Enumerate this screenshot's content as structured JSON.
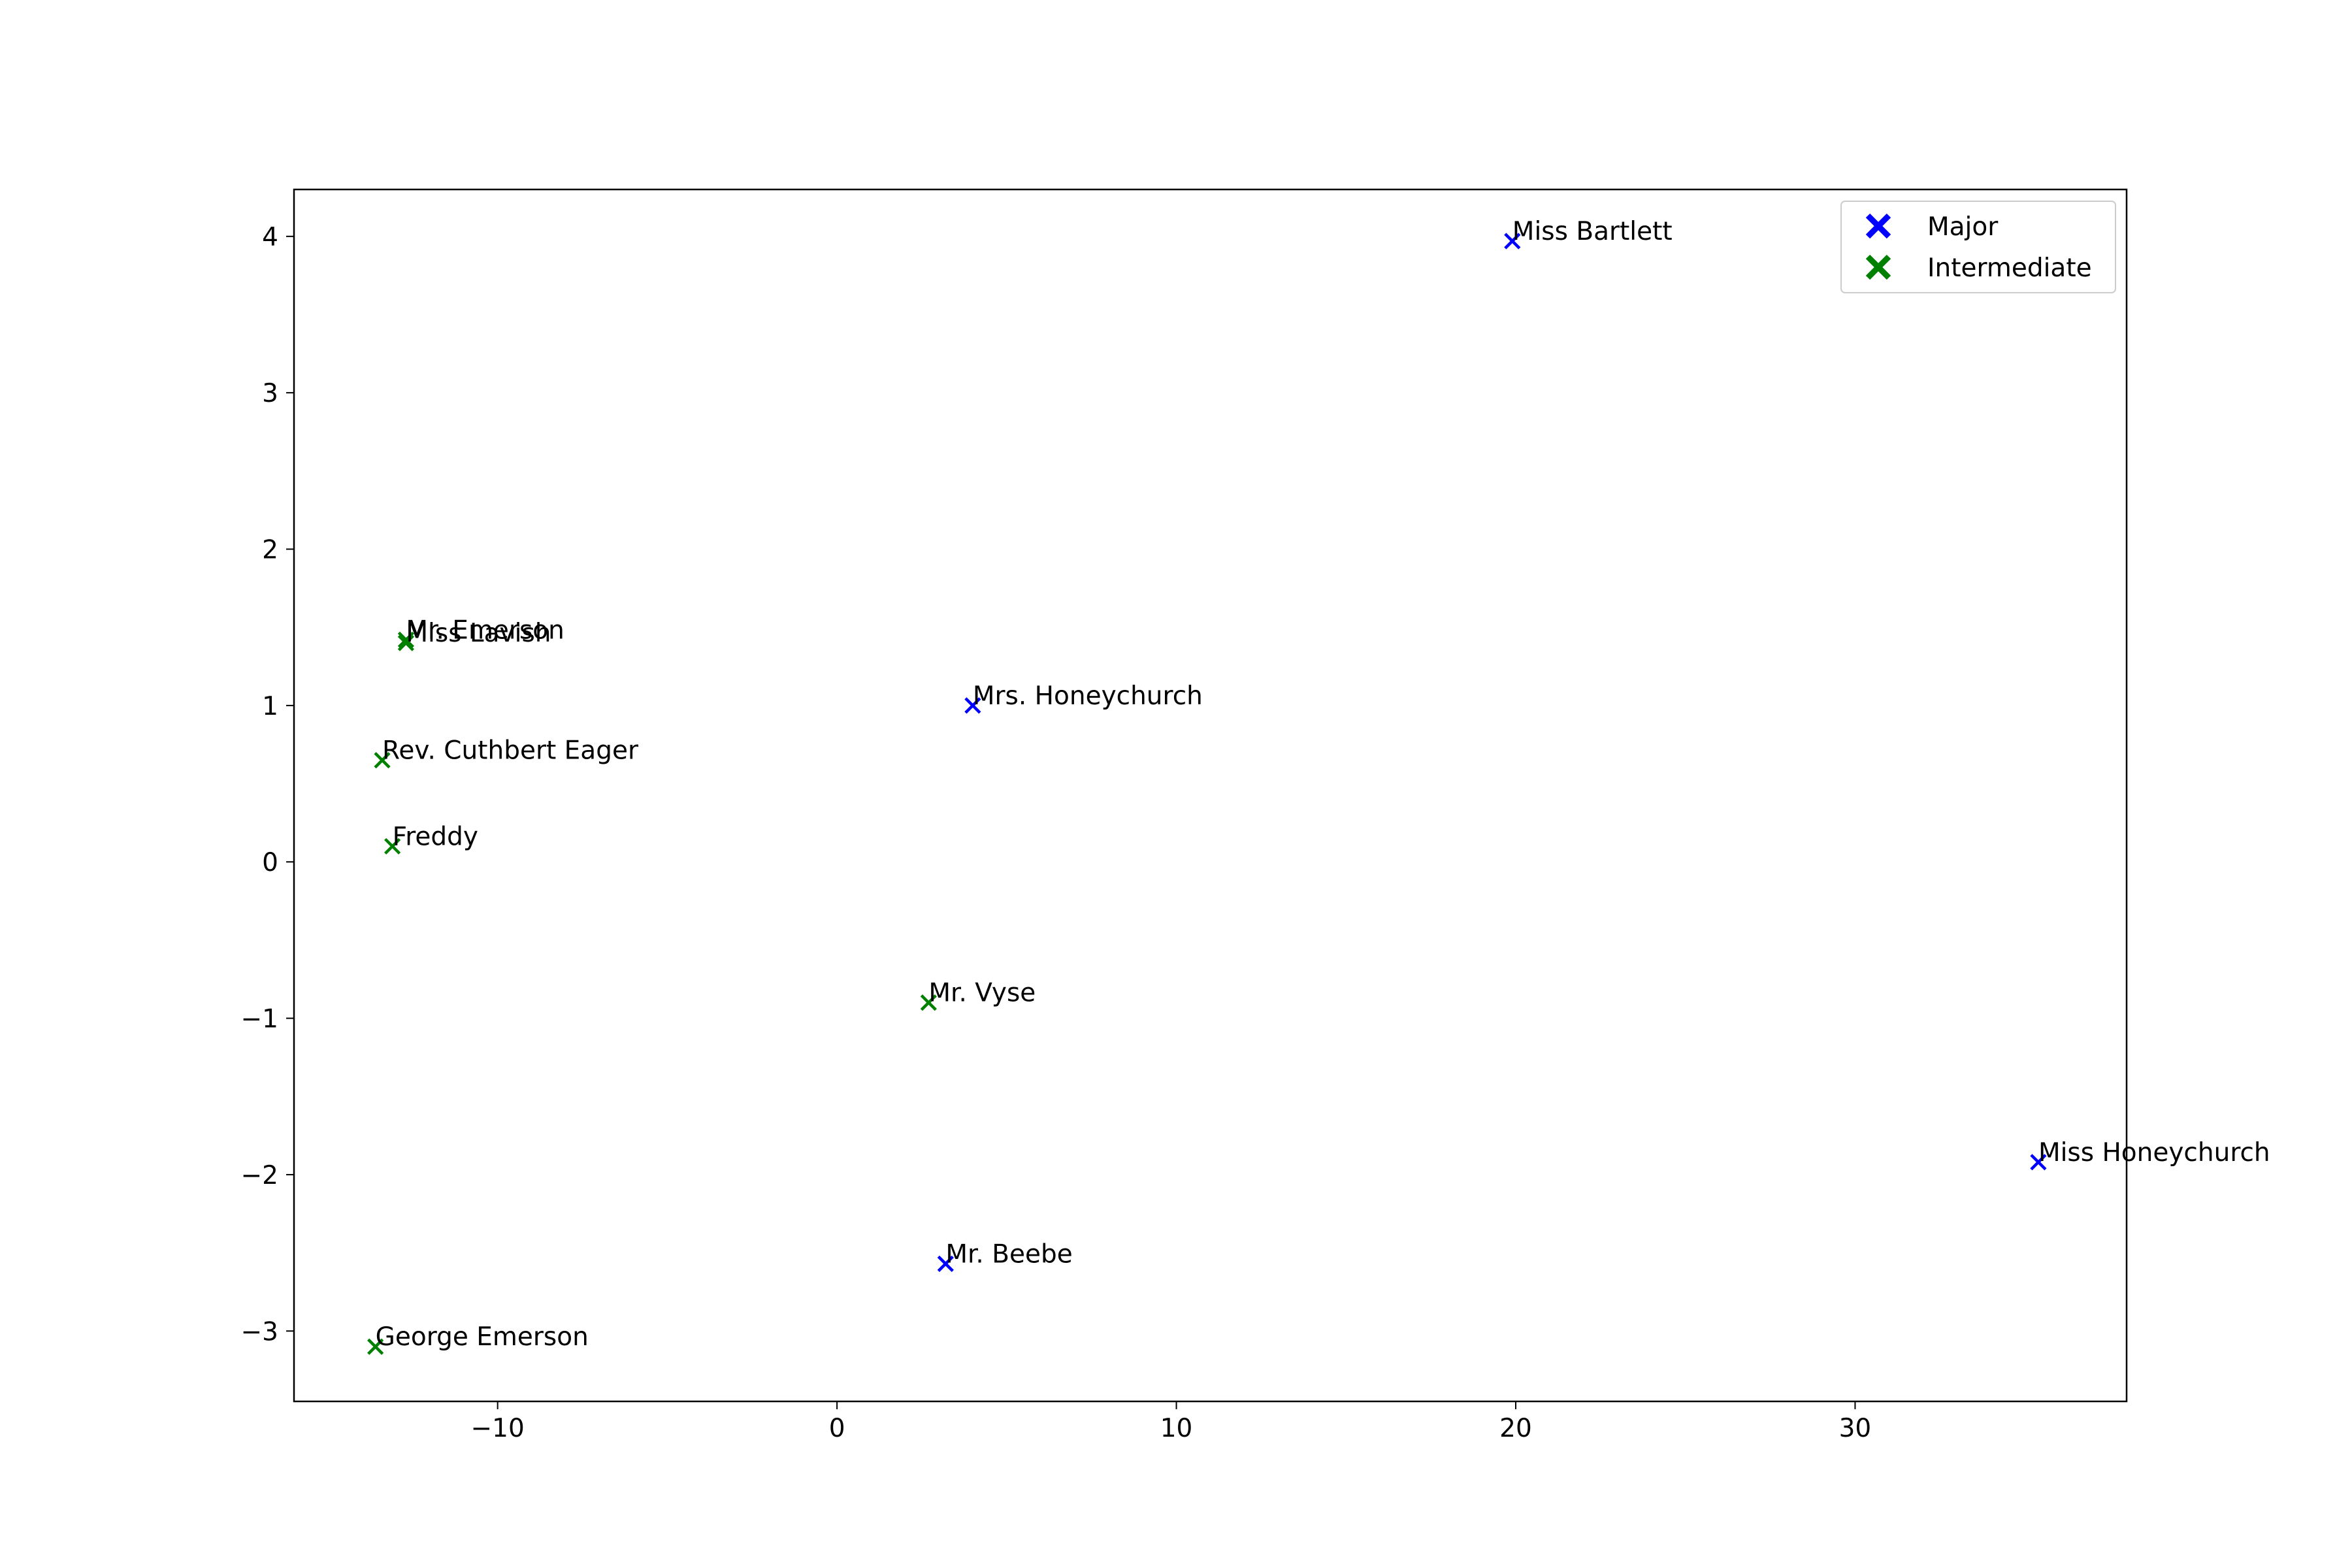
{
  "chart_data": {
    "type": "scatter",
    "title": "",
    "xlabel": "",
    "ylabel": "",
    "xlim": [
      -16,
      38
    ],
    "ylim": [
      -3.45,
      4.3
    ],
    "xticks": [
      -10,
      0,
      10,
      20,
      30
    ],
    "yticks": [
      -3,
      -2,
      -1,
      0,
      1,
      2,
      3,
      4
    ],
    "grid": false,
    "legend_position": "top-right",
    "marker": "x",
    "series": [
      {
        "name": "Major",
        "color": "#0000ff",
        "points": [
          {
            "x": 19.9,
            "y": 3.97,
            "label": "Miss Bartlett"
          },
          {
            "x": 4.0,
            "y": 1.0,
            "label": "Mrs. Honeychurch"
          },
          {
            "x": 35.4,
            "y": -1.92,
            "label": "Miss Honeychurch"
          },
          {
            "x": 3.2,
            "y": -2.57,
            "label": "Mr. Beebe"
          }
        ]
      },
      {
        "name": "Intermediate",
        "color": "#008000",
        "points": [
          {
            "x": -12.7,
            "y": 1.42,
            "label": "Mr. Emerson"
          },
          {
            "x": -12.7,
            "y": 1.4,
            "label": "Miss Lavish"
          },
          {
            "x": -13.4,
            "y": 0.65,
            "label": "Rev. Cuthbert Eager"
          },
          {
            "x": -13.1,
            "y": 0.1,
            "label": "Freddy"
          },
          {
            "x": 2.7,
            "y": -0.9,
            "label": "Mr. Vyse"
          },
          {
            "x": -13.6,
            "y": -3.1,
            "label": "George Emerson"
          }
        ]
      }
    ]
  }
}
